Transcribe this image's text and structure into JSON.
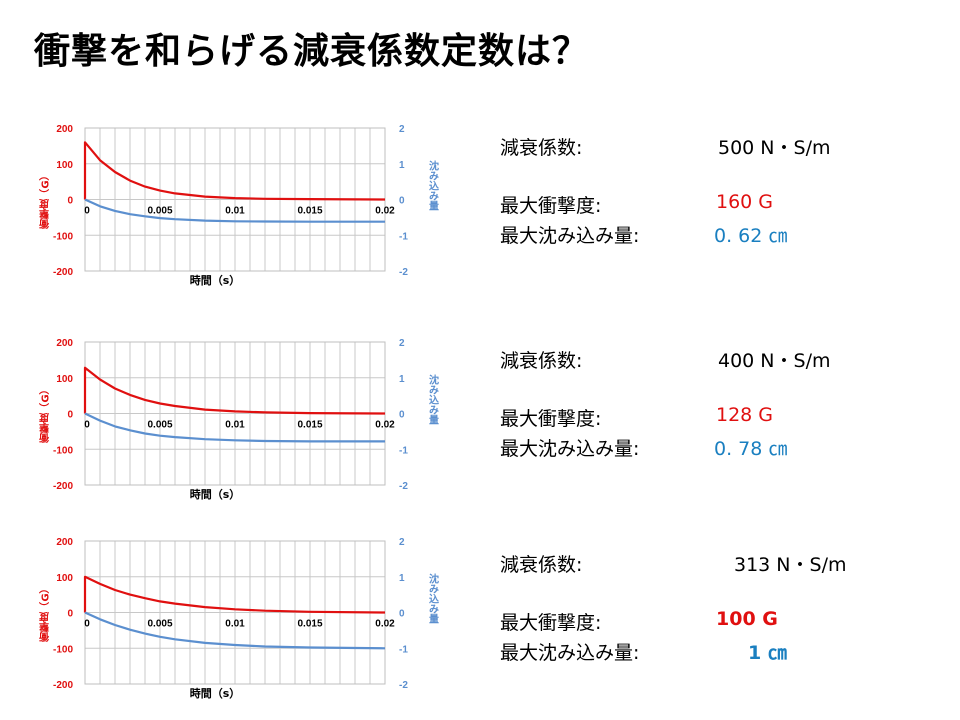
{
  "title": "衝撃を和らげる減衰係数定数は？",
  "colors": {
    "impact": "#e01010",
    "sink": "#5b8fcf",
    "grid": "#c8c8c8",
    "value_red": "#e01010",
    "value_blue": "#1a7fc0"
  },
  "panels": [
    {
      "info": {
        "damping_label": "減衰係数:",
        "damping_value": "500 N・S/m",
        "impact_label": "最大衝撃度:",
        "impact_value": "160 G",
        "sink_label": "最大沈み込み量:",
        "sink_value": "0. 62 ㎝"
      }
    },
    {
      "info": {
        "damping_label": "減衰係数:",
        "damping_value": "400 N・S/m",
        "impact_label": "最大衝撃度:",
        "impact_value": "128 G",
        "sink_label": "最大沈み込み量:",
        "sink_value": "0. 78 ㎝"
      }
    },
    {
      "info": {
        "damping_label": "減衰係数:",
        "damping_value": "313 N・S/m",
        "impact_label": "最大衝撃度:",
        "impact_value": "100 G",
        "sink_label": "最大沈み込み量:",
        "sink_value": "1 ㎝"
      }
    }
  ],
  "chart_data": [
    {
      "type": "line",
      "xlabel": "時間（s）",
      "ylabel_left": "衝撃度（G）",
      "ylabel_right": "沈み込み量",
      "xlim": [
        0,
        0.02
      ],
      "ylim_left": [
        -200,
        200
      ],
      "ylim_right": [
        -2,
        2
      ],
      "x_ticks": [
        "0",
        "0.005",
        "0.01",
        "0.015",
        "0.02"
      ],
      "y_ticks_left": [
        "200",
        "100",
        "0",
        "-100",
        "-200"
      ],
      "y_ticks_right": [
        "2",
        "1",
        "0",
        "-1",
        "-2"
      ],
      "grid": true,
      "series": [
        {
          "axis": "left",
          "x": [
            0,
            0.001,
            0.002,
            0.003,
            0.004,
            0.005,
            0.006,
            0.008,
            0.01,
            0.012,
            0.015,
            0.02
          ],
          "values": [
            160,
            110,
            77,
            53,
            36,
            25,
            17,
            8,
            4,
            2,
            1,
            0
          ]
        },
        {
          "axis": "right",
          "x": [
            0,
            0.001,
            0.002,
            0.003,
            0.004,
            0.005,
            0.006,
            0.008,
            0.01,
            0.012,
            0.015,
            0.02
          ],
          "values": [
            0,
            -0.19,
            -0.32,
            -0.41,
            -0.47,
            -0.52,
            -0.55,
            -0.59,
            -0.61,
            -0.615,
            -0.62,
            -0.62
          ]
        }
      ]
    },
    {
      "type": "line",
      "xlabel": "時間（s）",
      "ylabel_left": "衝撃度（G）",
      "ylabel_right": "沈み込み量",
      "xlim": [
        0,
        0.02
      ],
      "ylim_left": [
        -200,
        200
      ],
      "ylim_right": [
        -2,
        2
      ],
      "x_ticks": [
        "0",
        "0.005",
        "0.01",
        "0.015",
        "0.02"
      ],
      "y_ticks_left": [
        "200",
        "100",
        "0",
        "-100",
        "-200"
      ],
      "y_ticks_right": [
        "2",
        "1",
        "0",
        "-1",
        "-2"
      ],
      "grid": true,
      "series": [
        {
          "axis": "left",
          "x": [
            0,
            0.001,
            0.002,
            0.003,
            0.004,
            0.005,
            0.006,
            0.008,
            0.01,
            0.012,
            0.015,
            0.02
          ],
          "values": [
            128,
            95,
            70,
            52,
            38,
            28,
            21,
            11,
            6,
            3,
            1,
            0
          ]
        },
        {
          "axis": "right",
          "x": [
            0,
            0.001,
            0.002,
            0.003,
            0.004,
            0.005,
            0.006,
            0.008,
            0.01,
            0.012,
            0.015,
            0.02
          ],
          "values": [
            0,
            -0.2,
            -0.36,
            -0.47,
            -0.56,
            -0.62,
            -0.66,
            -0.72,
            -0.75,
            -0.77,
            -0.78,
            -0.78
          ]
        }
      ]
    },
    {
      "type": "line",
      "xlabel": "時間（s）",
      "ylabel_left": "衝撃度（G）",
      "ylabel_right": "沈み込み量",
      "xlim": [
        0,
        0.02
      ],
      "ylim_left": [
        -200,
        200
      ],
      "ylim_right": [
        -2,
        2
      ],
      "x_ticks": [
        "0",
        "0.005",
        "0.01",
        "0.015",
        "0.02"
      ],
      "y_ticks_left": [
        "200",
        "100",
        "0",
        "-100",
        "-200"
      ],
      "y_ticks_right": [
        "2",
        "1",
        "0",
        "-1",
        "-2"
      ],
      "grid": true,
      "series": [
        {
          "axis": "left",
          "x": [
            0,
            0.001,
            0.002,
            0.003,
            0.004,
            0.005,
            0.006,
            0.008,
            0.01,
            0.012,
            0.015,
            0.02
          ],
          "values": [
            100,
            80,
            63,
            50,
            40,
            31,
            25,
            15,
            9,
            5,
            2,
            0
          ]
        },
        {
          "axis": "right",
          "x": [
            0,
            0.001,
            0.002,
            0.003,
            0.004,
            0.005,
            0.006,
            0.008,
            0.01,
            0.012,
            0.015,
            0.02
          ],
          "values": [
            0,
            -0.19,
            -0.35,
            -0.48,
            -0.59,
            -0.68,
            -0.75,
            -0.85,
            -0.91,
            -0.95,
            -0.98,
            -1.0
          ]
        }
      ]
    }
  ]
}
